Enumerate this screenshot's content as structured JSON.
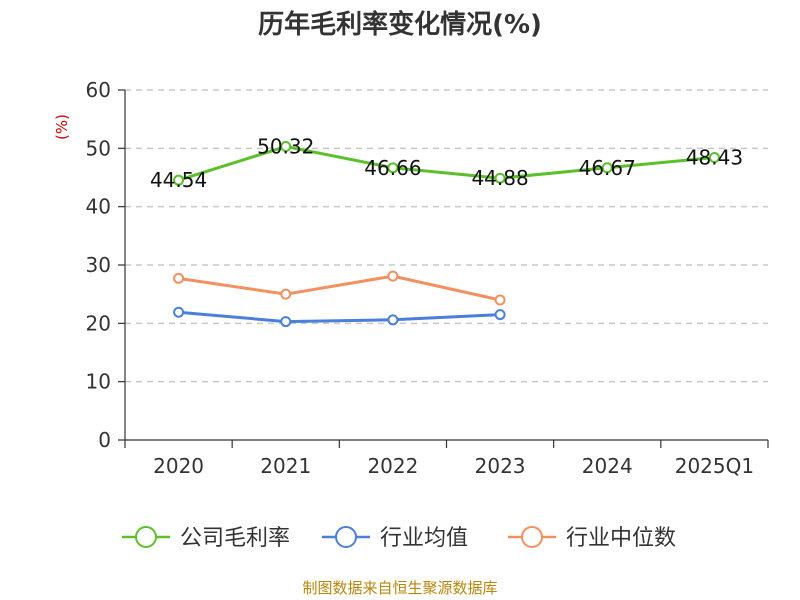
{
  "chart_data": {
    "type": "line",
    "title": "历年毛利率变化情况(%)",
    "ylabel": "(%)",
    "xlabel": "",
    "categories": [
      "2020",
      "2021",
      "2022",
      "2023",
      "2024",
      "2025Q1"
    ],
    "ylim": [
      0,
      60
    ],
    "yticks": [
      0,
      10,
      20,
      30,
      40,
      50,
      60
    ],
    "grid": true,
    "legend_position": "bottom",
    "series": [
      {
        "name": "公司毛利率",
        "color": "#5bc02a",
        "values": [
          44.54,
          50.32,
          46.66,
          44.88,
          46.67,
          48.43
        ],
        "labels": [
          "44.54",
          "50.32",
          "46.66",
          "44.88",
          "46.67",
          "48.43"
        ]
      },
      {
        "name": "行业均值",
        "color": "#4a7fdc",
        "values": [
          21.9,
          20.3,
          20.6,
          21.5,
          null,
          null
        ]
      },
      {
        "name": "行业中位数",
        "color": "#f49060",
        "values": [
          27.7,
          25.0,
          28.1,
          24.0,
          null,
          null
        ]
      }
    ]
  },
  "footer": {
    "source": "制图数据来自恒生聚源数据库"
  }
}
